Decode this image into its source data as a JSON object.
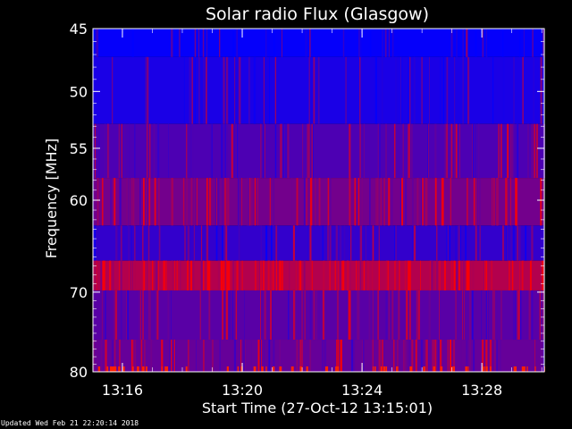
{
  "chart_data": {
    "type": "heatmap",
    "title": "Solar radio Flux (Glasgow)",
    "xlabel": "Start Time (27-Oct-12 13:15:01)",
    "ylabel": "Frequency [MHz]",
    "x_start": "13:15:01",
    "x_end": "13:30:05",
    "x_ticks": [
      "13:16",
      "13:20",
      "13:24",
      "13:28"
    ],
    "y_ticks": [
      45,
      50,
      55,
      60,
      70,
      80
    ],
    "ylim": [
      45,
      80
    ],
    "y_scale": "log",
    "colormap": [
      "#0000ff",
      "#ff0000"
    ],
    "bands": [
      {
        "f_low": 45.0,
        "f_high": 47.2,
        "level": 0.02
      },
      {
        "f_low": 47.2,
        "f_high": 52.8,
        "level": 0.1
      },
      {
        "f_low": 52.8,
        "f_high": 57.8,
        "level": 0.3
      },
      {
        "f_low": 57.8,
        "f_high": 62.6,
        "level": 0.45
      },
      {
        "f_low": 62.6,
        "f_high": 66.4,
        "level": 0.2
      },
      {
        "f_low": 66.4,
        "f_high": 69.8,
        "level": 0.7
      },
      {
        "f_low": 69.8,
        "f_high": 75.8,
        "level": 0.35
      },
      {
        "f_low": 75.8,
        "f_high": 80.0,
        "level": 0.4
      }
    ]
  },
  "footer": {
    "updated": "Updated Wed Feb 21 22:20:14 2018"
  }
}
